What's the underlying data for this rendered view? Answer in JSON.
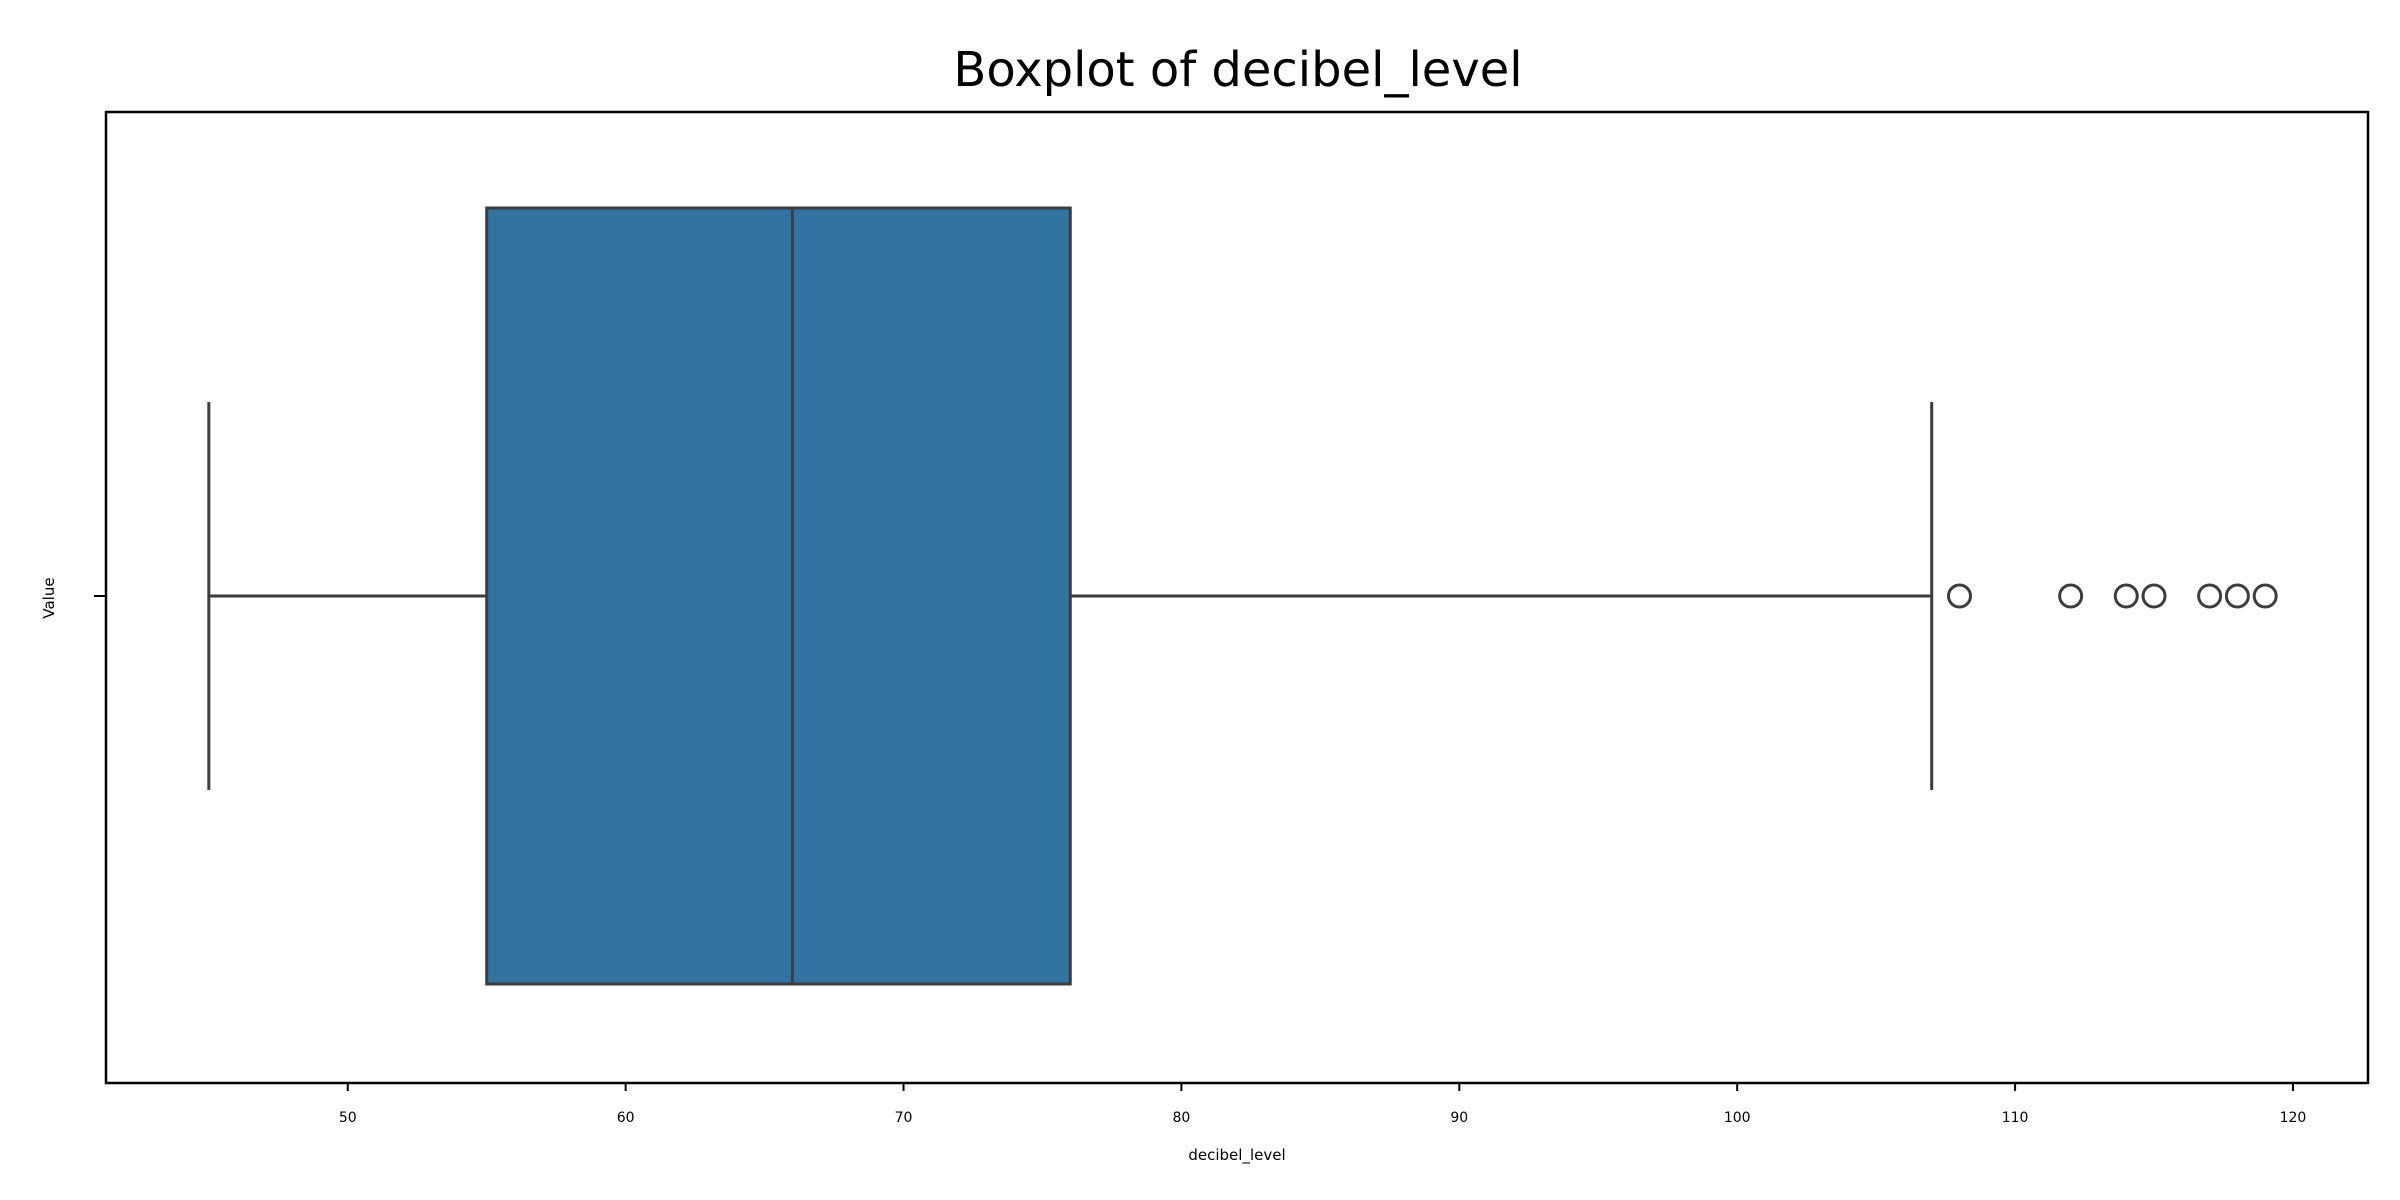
{
  "chart_data": {
    "type": "box",
    "title": "Boxplot of decibel_level",
    "xlabel": "decibel_level",
    "ylabel": "Value",
    "xlim": [
      41.3,
      122.7
    ],
    "x_ticks": [
      50,
      60,
      70,
      80,
      90,
      100,
      110,
      120
    ],
    "x_tick_labels": [
      "50",
      "60",
      "70",
      "80",
      "90",
      "100",
      "110",
      "120"
    ],
    "grid": false,
    "box": {
      "whisker_low": 45,
      "q1": 55,
      "median": 66,
      "q3": 76,
      "whisker_high": 107,
      "outliers": [
        108,
        112,
        114,
        115,
        117,
        118,
        119
      ],
      "fill_color": "#3274a1",
      "line_color": "#3d3d3d"
    }
  }
}
